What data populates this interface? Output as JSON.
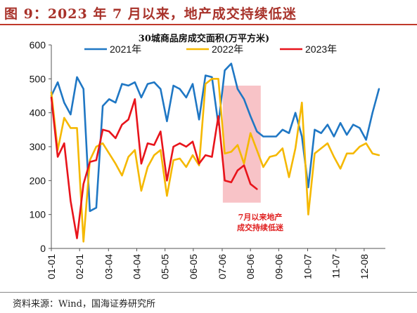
{
  "figure": {
    "title": "图 9：2023 年 7 月以来，地产成交持续低迷",
    "source": "资料来源：Wind，国海证券研究所"
  },
  "chart_data": {
    "type": "line",
    "title": "30城商品房成交面积(万平方米)",
    "xlabel": "",
    "ylabel": "",
    "ylim": [
      0,
      600
    ],
    "yticks": [
      0,
      100,
      200,
      300,
      400,
      500,
      600
    ],
    "x_tick_labels": [
      "01-01",
      "02-01",
      "03-04",
      "04-04",
      "05-05",
      "06-05",
      "07-06",
      "08-06",
      "09-06",
      "10-07",
      "11-07",
      "12-08"
    ],
    "x_tick_weeks": [
      0,
      4.4,
      8.9,
      13.3,
      17.7,
      22.1,
      26.6,
      31.0,
      35.4,
      39.9,
      44.3,
      48.7
    ],
    "x_max_week": 52,
    "grid": false,
    "legend_position": "top",
    "series": [
      {
        "name": "2021年",
        "color": "#1f77c4",
        "x": [
          0,
          1,
          2,
          3,
          4,
          5,
          6,
          7,
          8,
          9,
          10,
          11,
          12,
          13,
          14,
          15,
          16,
          17,
          18,
          19,
          20,
          21,
          22,
          23,
          24,
          25,
          26,
          27,
          28,
          29,
          30,
          31,
          32,
          33,
          34,
          35,
          36,
          37,
          38,
          39,
          40,
          41,
          42,
          43,
          44,
          45,
          46,
          47,
          48,
          49,
          50,
          51,
          52
        ],
        "values": [
          450,
          490,
          430,
          395,
          505,
          470,
          110,
          120,
          420,
          440,
          430,
          485,
          480,
          490,
          445,
          485,
          490,
          470,
          375,
          480,
          470,
          445,
          485,
          380,
          510,
          505,
          365,
          525,
          545,
          470,
          440,
          390,
          345,
          330,
          330,
          330,
          350,
          340,
          400,
          330,
          180,
          350,
          340,
          365,
          330,
          370,
          335,
          365,
          355,
          320,
          400,
          470,
          null
        ]
      },
      {
        "name": "2022年",
        "color": "#f5b800",
        "x": [
          0,
          1,
          2,
          3,
          4,
          5,
          6,
          7,
          8,
          9,
          10,
          11,
          12,
          13,
          14,
          15,
          16,
          17,
          18,
          19,
          20,
          21,
          22,
          23,
          24,
          25,
          26,
          27,
          28,
          29,
          30,
          31,
          32,
          33,
          34,
          35,
          36,
          37,
          38,
          39,
          40,
          41,
          42,
          43,
          44,
          45,
          46,
          47,
          48,
          49,
          50,
          51,
          52
        ],
        "values": [
          460,
          290,
          385,
          355,
          355,
          20,
          260,
          300,
          310,
          280,
          250,
          215,
          270,
          290,
          170,
          240,
          275,
          290,
          155,
          260,
          265,
          240,
          275,
          245,
          485,
          500,
          500,
          280,
          285,
          305,
          250,
          340,
          290,
          240,
          270,
          275,
          295,
          210,
          295,
          430,
          100,
          280,
          295,
          310,
          270,
          235,
          280,
          280,
          300,
          310,
          280,
          275,
          null
        ]
      },
      {
        "name": "2023年",
        "color": "#e8141b",
        "x": [
          0,
          1,
          2,
          3,
          4,
          5,
          6,
          7,
          8,
          9,
          10,
          11,
          12,
          13,
          14,
          15,
          16,
          17,
          18,
          19,
          20,
          21,
          22,
          23,
          24,
          25,
          26,
          27,
          28,
          29,
          30,
          31,
          32
        ],
        "values": [
          445,
          270,
          310,
          140,
          30,
          190,
          255,
          260,
          350,
          345,
          325,
          365,
          380,
          440,
          250,
          310,
          305,
          345,
          200,
          300,
          310,
          300,
          315,
          250,
          275,
          270,
          390,
          200,
          195,
          230,
          245,
          190,
          175
        ]
      }
    ],
    "highlight": {
      "x_start_week": 26.7,
      "x_end_week": 32.6,
      "y_top": 480,
      "y_bottom": 135,
      "color": "#f7b8bd"
    },
    "annotation": [
      "7月以来地产",
      "成交持续低迷"
    ]
  }
}
